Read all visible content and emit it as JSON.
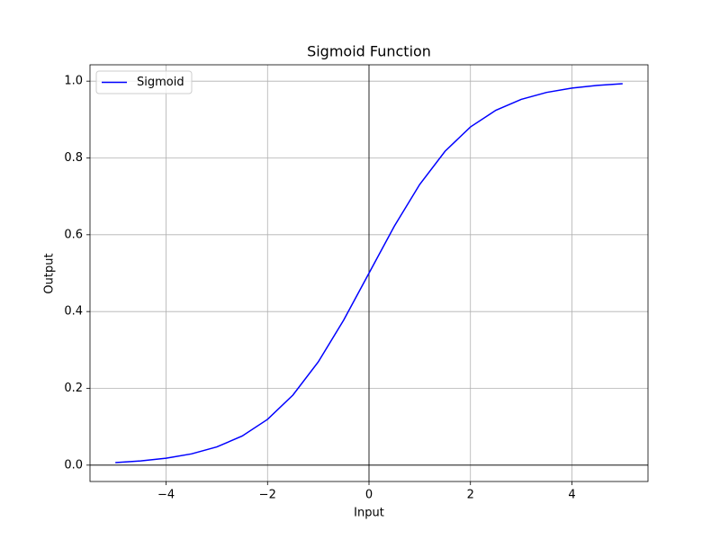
{
  "chart_data": {
    "type": "line",
    "title": "Sigmoid Function",
    "x_label": "Input",
    "y_label": "Output",
    "x": [
      -5,
      -4.5,
      -4,
      -3.5,
      -3,
      -2.5,
      -2,
      -1.5,
      -1,
      -0.5,
      0,
      0.5,
      1,
      1.5,
      2,
      2.5,
      3,
      3.5,
      4,
      4.5,
      5
    ],
    "series": [
      {
        "name": "Sigmoid",
        "color": "#0000ff",
        "values": [
          0.0067,
          0.011,
          0.018,
          0.0293,
          0.0474,
          0.0759,
          0.1192,
          0.1824,
          0.2689,
          0.3775,
          0.5,
          0.6225,
          0.7311,
          0.8176,
          0.8808,
          0.9241,
          0.9526,
          0.9707,
          0.982,
          0.989,
          0.9933
        ]
      }
    ],
    "xlim": [
      -5.5,
      5.5
    ],
    "ylim": [
      -0.0426,
      1.0426
    ],
    "xticks": [
      {
        "value": -4,
        "label": "−4"
      },
      {
        "value": -2,
        "label": "−2"
      },
      0,
      2,
      4
    ],
    "yticks": [
      {
        "value": 0,
        "label": "0.0"
      },
      0.2,
      0.4,
      0.6,
      0.8,
      {
        "value": 1,
        "label": "1.0"
      }
    ],
    "grid": true,
    "legend": "upper-left",
    "axhline": 0,
    "axvline": 0
  }
}
